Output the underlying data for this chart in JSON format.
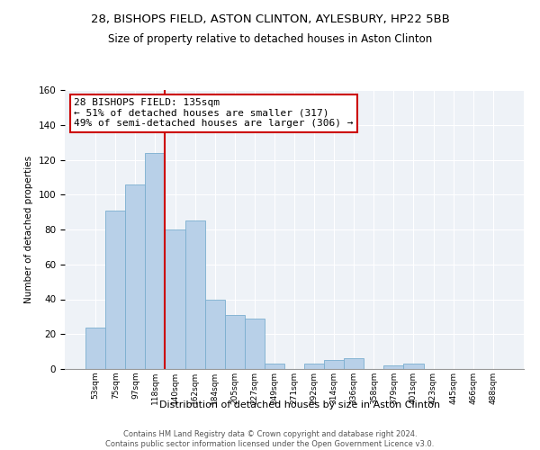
{
  "title": "28, BISHOPS FIELD, ASTON CLINTON, AYLESBURY, HP22 5BB",
  "subtitle": "Size of property relative to detached houses in Aston Clinton",
  "xlabel": "Distribution of detached houses by size in Aston Clinton",
  "ylabel": "Number of detached properties",
  "bar_labels": [
    "53sqm",
    "75sqm",
    "97sqm",
    "118sqm",
    "140sqm",
    "162sqm",
    "184sqm",
    "205sqm",
    "227sqm",
    "249sqm",
    "271sqm",
    "292sqm",
    "314sqm",
    "336sqm",
    "358sqm",
    "379sqm",
    "401sqm",
    "423sqm",
    "445sqm",
    "466sqm",
    "488sqm"
  ],
  "bar_values": [
    24,
    91,
    106,
    124,
    80,
    85,
    40,
    31,
    29,
    3,
    0,
    3,
    5,
    6,
    0,
    2,
    3,
    0,
    0,
    0,
    0
  ],
  "bar_color": "#b8d0e8",
  "bar_edge_color": "#7aaecf",
  "property_line_label": "28 BISHOPS FIELD: 135sqm",
  "annotation_line1": "← 51% of detached houses are smaller (317)",
  "annotation_line2": "49% of semi-detached houses are larger (306) →",
  "vline_color": "#cc0000",
  "vline_x": 3.5,
  "ylim": [
    0,
    160
  ],
  "yticks": [
    0,
    20,
    40,
    60,
    80,
    100,
    120,
    140,
    160
  ],
  "bg_color": "#eef2f7",
  "grid_color": "#ffffff",
  "footnote": "Contains HM Land Registry data © Crown copyright and database right 2024.\nContains public sector information licensed under the Open Government Licence v3.0.",
  "title_fontsize": 9.5,
  "subtitle_fontsize": 8.5,
  "ann_fontsize": 8
}
